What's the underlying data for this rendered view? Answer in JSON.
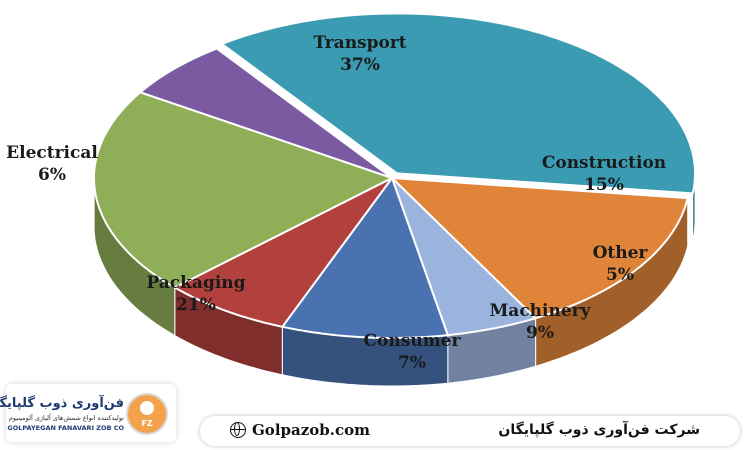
{
  "chart_data": {
    "type": "pie",
    "title": "",
    "slices": [
      {
        "label": "Transport",
        "value": 37,
        "value_label": "37%",
        "color": "#3a9bb3"
      },
      {
        "label": "Construction",
        "value": 15,
        "value_label": "15%",
        "color": "#e0843a"
      },
      {
        "label": "Other",
        "value": 5,
        "value_label": "5%",
        "color": "#9bb4dd"
      },
      {
        "label": "Machinery",
        "value": 9,
        "value_label": "9%",
        "color": "#4a72b0"
      },
      {
        "label": "Consumer",
        "value": 7,
        "value_label": "7%",
        "color": "#b2403c"
      },
      {
        "label": "Packaging",
        "value": 21,
        "value_label": "21%",
        "color": "#8fae58"
      },
      {
        "label": "Electrical",
        "value": 6,
        "value_label": "6%",
        "color": "#7b5aa2"
      }
    ],
    "style": "3d-exploded-pie",
    "legend": "none"
  },
  "footer": {
    "logo_name": "فن‌آوری ذوب گلپایگان",
    "logo_tagline": "تولیدکننده انواع شمش‌های آلیاژی آلومینیوم",
    "logo_english": "GOLPAYEGAN FANAVARI ZOB CO",
    "logo_badge": "FZ",
    "website": "Golpazob.com",
    "website_icon": "globe-icon",
    "company_name": "شرکت فن‌آوری ذوب گلپایگان"
  }
}
